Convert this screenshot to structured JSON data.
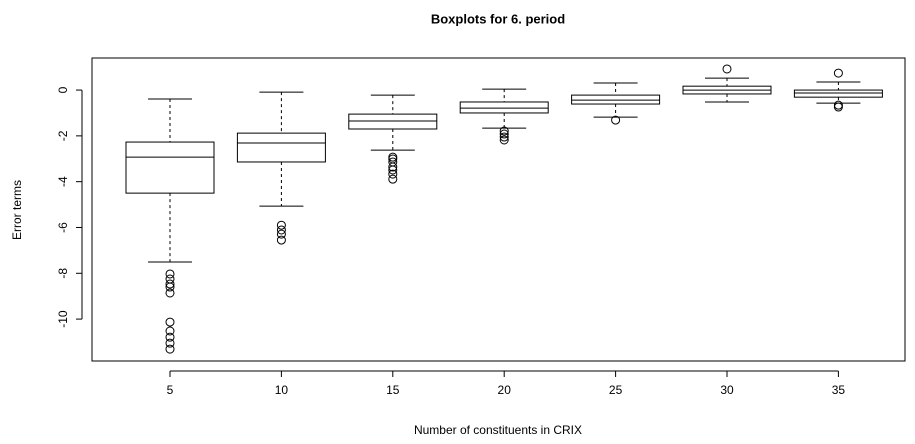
{
  "chart_data": {
    "type": "boxplot",
    "title": "Boxplots for 6. period",
    "x_label": "Number of constituents in CRIX",
    "y_label": "Error terms",
    "categories": [
      "5",
      "10",
      "15",
      "20",
      "25",
      "30",
      "35"
    ],
    "ylim": [
      -11.83,
      1.4
    ],
    "yticks": [
      0,
      -2,
      -4,
      -6,
      -8,
      -10
    ],
    "color": "#000000",
    "boxes": [
      {
        "whisker_high": -0.39,
        "q3": -2.27,
        "median": -2.93,
        "q1": -4.5,
        "whisker_low": -7.51,
        "outliers": [
          -8.03,
          -8.25,
          -8.47,
          -8.6,
          -8.86,
          -10.13,
          -10.52,
          -10.79,
          -11.05,
          -11.31
        ]
      },
      {
        "whisker_high": -0.09,
        "q3": -1.88,
        "median": -2.31,
        "q1": -3.14,
        "whisker_low": -5.07,
        "outliers": [
          -5.9,
          -6.11,
          -6.29,
          -6.55
        ]
      },
      {
        "whisker_high": -0.22,
        "q3": -1.05,
        "median": -1.35,
        "q1": -1.7,
        "whisker_low": -2.62,
        "outliers": [
          -2.93,
          -3.01,
          -3.14,
          -3.36,
          -3.49,
          -3.67,
          -3.89
        ]
      },
      {
        "whisker_high": 0.04,
        "q3": -0.52,
        "median": -0.79,
        "q1": -1.0,
        "whisker_low": -1.66,
        "outliers": [
          -1.79,
          -1.92,
          -2.05,
          -2.18
        ]
      },
      {
        "whisker_high": 0.31,
        "q3": -0.22,
        "median": -0.44,
        "q1": -0.61,
        "whisker_low": -1.18,
        "outliers": [
          -1.31
        ]
      },
      {
        "whisker_high": 0.52,
        "q3": 0.17,
        "median": 0,
        "q1": -0.17,
        "whisker_low": -0.52,
        "outliers": [
          0.92
        ]
      },
      {
        "whisker_high": 0.35,
        "q3": 0,
        "median": -0.13,
        "q1": -0.31,
        "whisker_low": -0.57,
        "outliers": [
          0.74,
          -0.66,
          -0.74
        ]
      }
    ]
  }
}
